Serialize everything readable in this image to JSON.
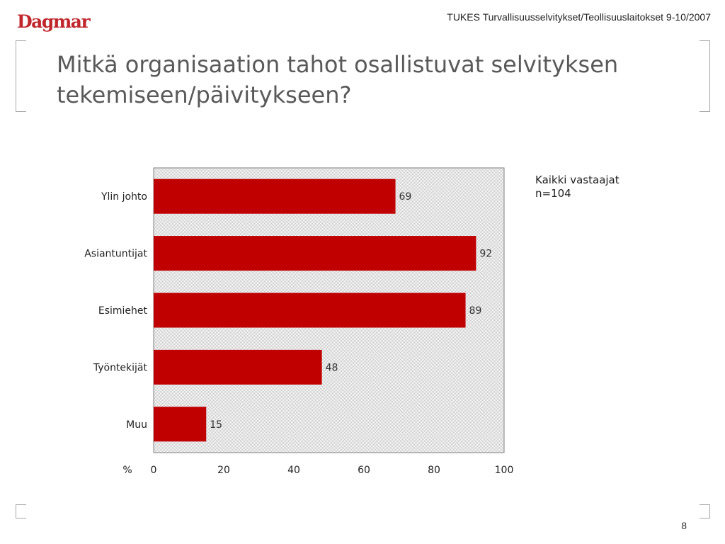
{
  "header": {
    "logo_text": "Dagmar",
    "report_meta": "TUKES Turvallisuusselvitykset/Teollisuuslaitokset 9-10/2007"
  },
  "slide": {
    "title": "Mitkä organisaation tahot osallistuvat selvityksen tekemiseen/päivitykseen?",
    "page_number": "8"
  },
  "legend": {
    "group": "Kaikki vastaajat",
    "sample": "n=104"
  },
  "colors": {
    "brand": "#c0272d",
    "bar": "#c00000",
    "title": "#595959"
  },
  "chart_data": {
    "type": "bar",
    "orientation": "horizontal",
    "categories": [
      "Ylin johto",
      "Asiantuntijat",
      "Esimiehet",
      "Työntekijät",
      "Muu"
    ],
    "values": [
      69,
      92,
      89,
      48,
      15
    ],
    "xlabel": "%",
    "xlim": [
      0,
      100
    ],
    "xticks": [
      "0",
      "20",
      "40",
      "60",
      "80",
      "100"
    ],
    "grid": false,
    "plot_background": "dotted-gray"
  }
}
